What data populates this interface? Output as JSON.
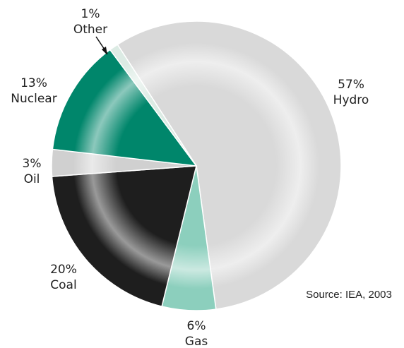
{
  "chart_data": {
    "type": "pie",
    "categories": [
      "Hydro",
      "Gas",
      "Coal",
      "Oil",
      "Nuclear",
      "Other"
    ],
    "values": [
      57,
      6,
      20,
      3,
      13,
      1
    ],
    "value_labels": [
      "57%",
      "6%",
      "20%",
      "3%",
      "13%",
      "1%"
    ],
    "colors": [
      "#d9d9d9",
      "#8ccfbd",
      "#1e1e1e",
      "#d0d0d0",
      "#00866b",
      "#dcebe4"
    ],
    "source": "Source: IEA, 2003"
  }
}
